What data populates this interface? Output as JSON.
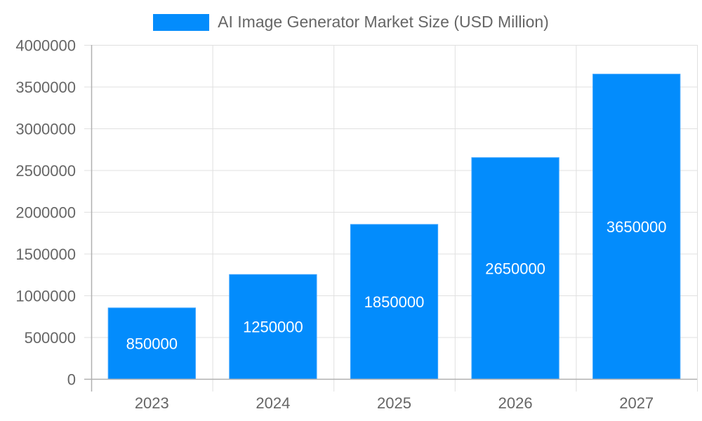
{
  "legend": {
    "label": "AI Image Generator Market Size (USD Million)",
    "color": "#038cfc"
  },
  "colors": {
    "bar": "#038cfc",
    "bar_border": "#3aa3ff",
    "grid": "#e0e0e0",
    "axis": "#b0b0b0",
    "tick_text": "#666666",
    "bar_label": "#ffffff"
  },
  "chart_data": {
    "type": "bar",
    "title": "",
    "categories": [
      "2023",
      "2024",
      "2025",
      "2026",
      "2027"
    ],
    "series": [
      {
        "name": "AI Image Generator Market Size (USD Million)",
        "values": [
          850000,
          1250000,
          1850000,
          2650000,
          3650000
        ]
      }
    ],
    "xlabel": "",
    "ylabel": "",
    "ylim": [
      0,
      4000000
    ],
    "yticks": [
      0,
      500000,
      1000000,
      1500000,
      2000000,
      2500000,
      3000000,
      3500000,
      4000000
    ],
    "grid": true,
    "legend_position": "top",
    "data_labels": true
  }
}
